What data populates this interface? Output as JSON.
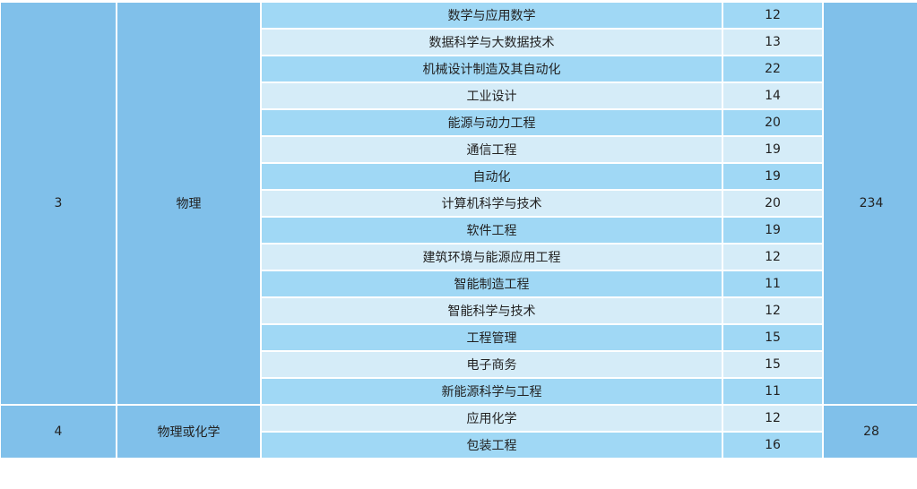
{
  "colors": {
    "merged": "#80c0ea",
    "row_dark": "#a0d8f5",
    "row_light": "#d5ecf8"
  },
  "groups": [
    {
      "index": "3",
      "subject": "物理",
      "total": "234",
      "majors": [
        {
          "name": "数学与应用数学",
          "count": "12"
        },
        {
          "name": "数据科学与大数据技术",
          "count": "13"
        },
        {
          "name": "机械设计制造及其自动化",
          "count": "22"
        },
        {
          "name": "工业设计",
          "count": "14"
        },
        {
          "name": "能源与动力工程",
          "count": "20"
        },
        {
          "name": "通信工程",
          "count": "19"
        },
        {
          "name": "自动化",
          "count": "19"
        },
        {
          "name": "计算机科学与技术",
          "count": "20"
        },
        {
          "name": "软件工程",
          "count": "19"
        },
        {
          "name": "建筑环境与能源应用工程",
          "count": "12"
        },
        {
          "name": "智能制造工程",
          "count": "11"
        },
        {
          "name": "智能科学与技术",
          "count": "12"
        },
        {
          "name": "工程管理",
          "count": "15"
        },
        {
          "name": "电子商务",
          "count": "15"
        },
        {
          "name": "新能源科学与工程",
          "count": "11"
        }
      ]
    },
    {
      "index": "4",
      "subject": "物理或化学",
      "total": "28",
      "majors": [
        {
          "name": "应用化学",
          "count": "12"
        },
        {
          "name": "包装工程",
          "count": "16"
        }
      ]
    }
  ]
}
